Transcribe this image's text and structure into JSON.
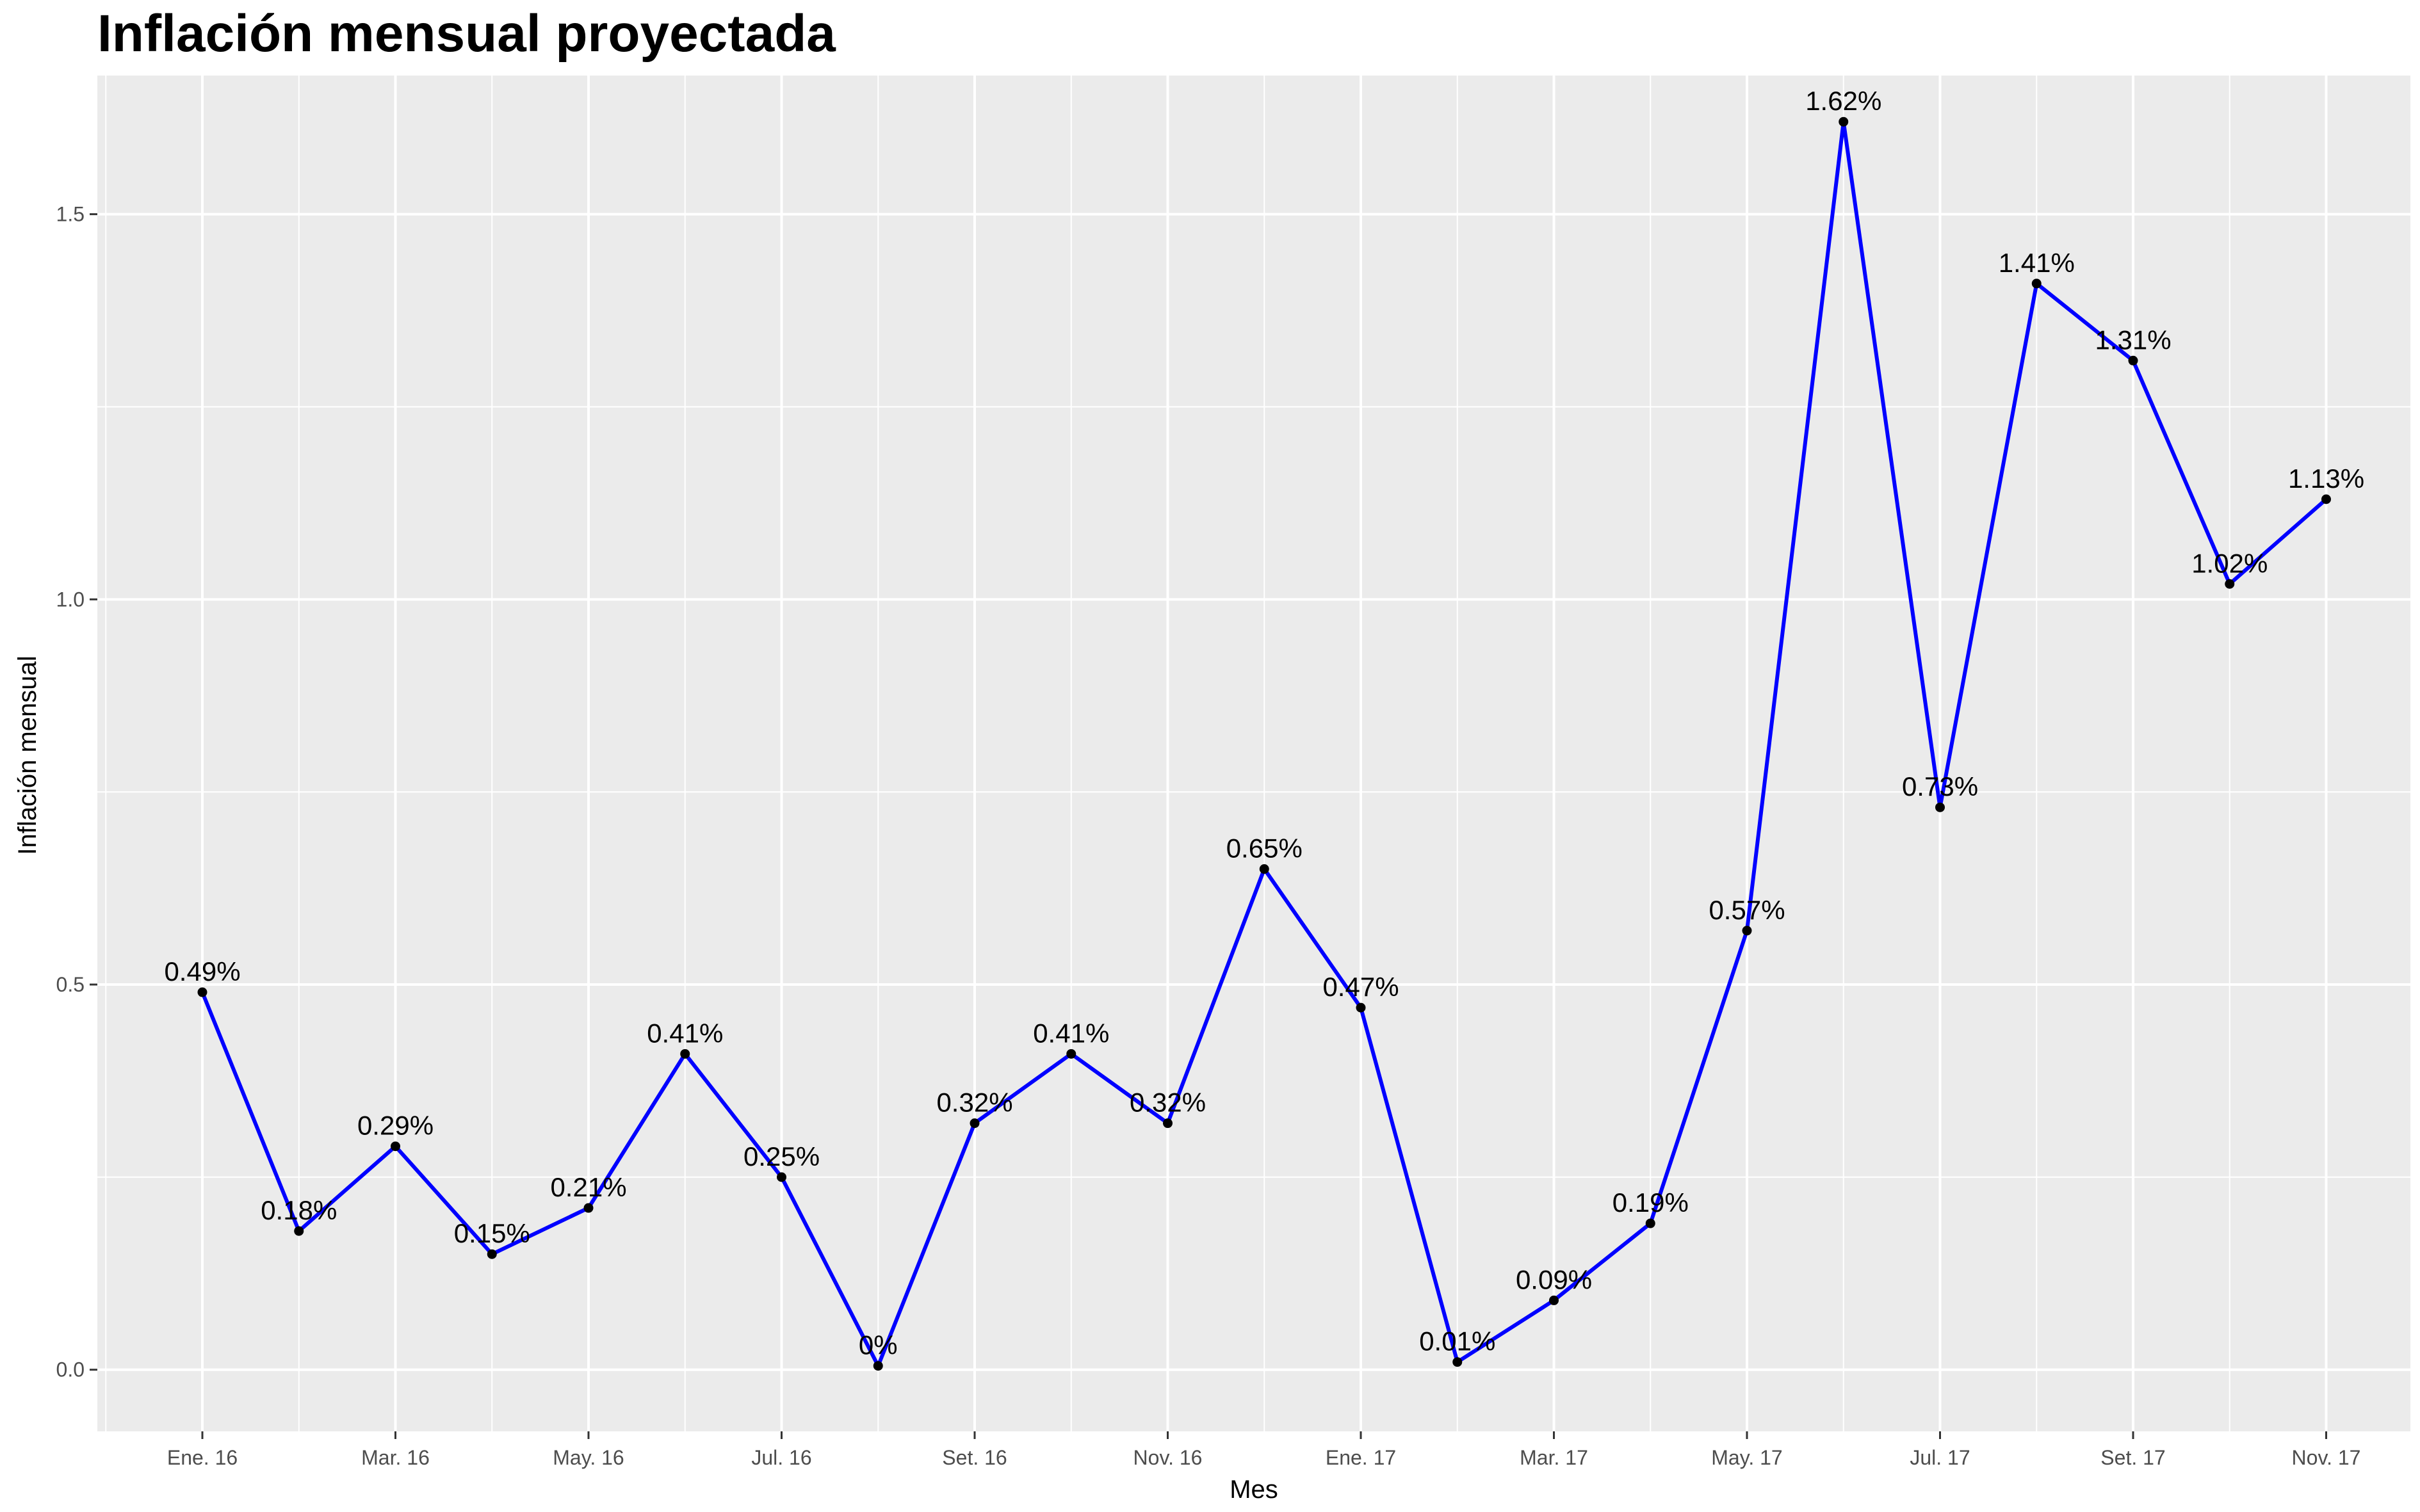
{
  "chart_data": {
    "type": "line",
    "title": "Inflación mensual proyectada",
    "xlabel": "Mes",
    "ylabel": "Inflación mensual",
    "ylim": [
      -0.08,
      1.68
    ],
    "y_ticks": [
      0.0,
      0.5,
      1.0,
      1.5
    ],
    "y_tick_labels": [
      "0.0",
      "0.5",
      "1.0",
      "1.5"
    ],
    "x_tick_labels": [
      "Ene. 16",
      "Mar. 16",
      "May. 16",
      "Jul. 16",
      "Set. 16",
      "Nov. 16",
      "Ene. 17",
      "Mar. 17",
      "May. 17",
      "Jul. 17",
      "Set. 17",
      "Nov. 17"
    ],
    "x_tick_month_index": [
      0,
      2,
      4,
      6,
      8,
      10,
      12,
      14,
      16,
      18,
      20,
      22
    ],
    "grid": true,
    "line_color": "#0000ff",
    "point_color": "#000000",
    "background_color": "#ebebeb",
    "series": [
      {
        "x": [
          0,
          1,
          2,
          3,
          4,
          5,
          6,
          7,
          8,
          9,
          10,
          11,
          12,
          13,
          14,
          15,
          16,
          17,
          18,
          19,
          20,
          21,
          22
        ],
        "values": [
          0.49,
          0.18,
          0.29,
          0.15,
          0.21,
          0.41,
          0.25,
          0.005,
          0.32,
          0.41,
          0.32,
          0.65,
          0.47,
          0.01,
          0.09,
          0.19,
          0.57,
          1.62,
          0.73,
          1.41,
          1.31,
          1.02,
          1.13
        ],
        "labels": [
          "0.49%",
          "0.18%",
          "0.29%",
          "0.15%",
          "0.21%",
          "0.41%",
          "0.25%",
          "0%",
          "0.32%",
          "0.41%",
          "0.32%",
          "0.65%",
          "0.47%",
          "0.01%",
          "0.09%",
          "0.19%",
          "0.57%",
          "1.62%",
          "0.73%",
          "1.41%",
          "1.31%",
          "1.02%",
          "1.13%"
        ]
      }
    ]
  }
}
